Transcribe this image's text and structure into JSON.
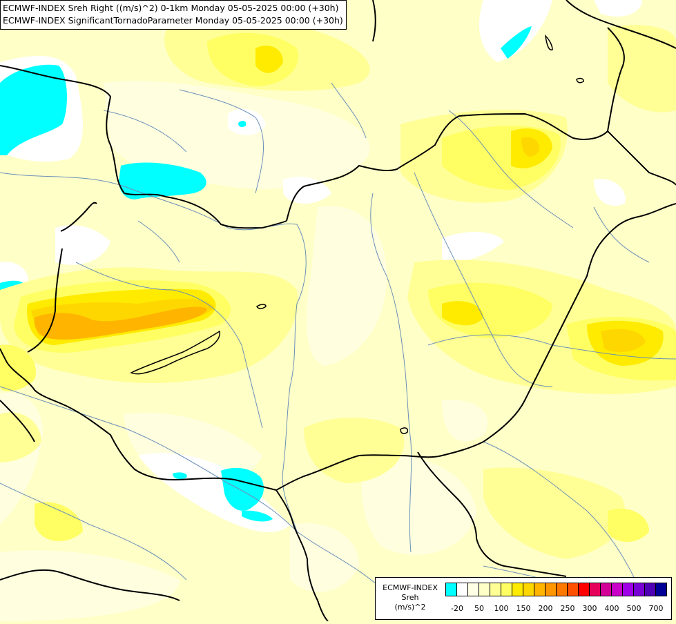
{
  "title_lines": [
    "ECMWF-INDEX Sreh Right ((m/s)^2) 0-1km Monday 05-05-2025 00:00 (+30h)",
    "ECMWF-INDEX SignificantTornadoParameter Monday 05-05-2025 00:00 (+30h)"
  ],
  "legend": {
    "title_lines": [
      "ECMWF-INDEX",
      "Sreh",
      "(m/s)^2"
    ],
    "tick_labels": [
      "-20",
      "50",
      "100",
      "150",
      "200",
      "250",
      "300",
      "400",
      "500",
      "700"
    ],
    "colors": [
      "#00ffff",
      "#ffffff",
      "#ffffe6",
      "#ffffc8",
      "#ffff96",
      "#ffff64",
      "#ffeb00",
      "#ffd700",
      "#ffb400",
      "#ff9600",
      "#ff7800",
      "#ff5000",
      "#ff0000",
      "#e6005a",
      "#d20096",
      "#c800c8",
      "#a000e6",
      "#7800d2",
      "#5000b4",
      "#000096"
    ]
  },
  "map": {
    "background": "#ffffc8",
    "field_colors": {
      "cyan": "#00ffff",
      "white": "#ffffff",
      "very_light": "#ffffe0",
      "light": "#ffff96",
      "yellow": "#ffff64",
      "gold": "#ffeb00",
      "deep_gold": "#ffd700",
      "orange": "#ffb400"
    },
    "border_color": "#000000",
    "river_color": "#6a8fb8"
  }
}
